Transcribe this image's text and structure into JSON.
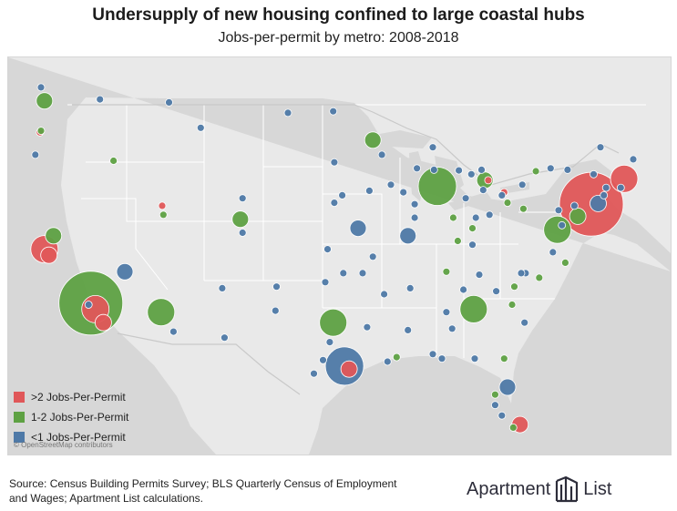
{
  "header": {
    "title": "Undersupply of new housing confined to large coastal hubs",
    "subtitle": "Jobs-per-permit by metro: 2008-2018"
  },
  "colors": {
    "red": "#e05759",
    "green": "#5ea143",
    "blue": "#4e79a7",
    "land": "#e9e9e9",
    "water": "#d7d7d7",
    "border": "#ffffff"
  },
  "legend": {
    "items": [
      {
        "label": ">2 Jobs-Per-Permit",
        "category": "red"
      },
      {
        "label": "1-2 Jobs-Per-Permit",
        "category": "green"
      },
      {
        "label": "<1 Jobs-Per-Permit",
        "category": "blue"
      }
    ]
  },
  "map": {
    "attribution": "© OpenStreetMap contributors",
    "metros": [
      {
        "lat": 40.7,
        "lon": -74.0,
        "category": "red",
        "size": 5
      },
      {
        "lat": 42.4,
        "lon": -71.1,
        "category": "red",
        "size": 3
      },
      {
        "lat": 37.7,
        "lon": -122.3,
        "category": "red",
        "size": 3
      },
      {
        "lat": 37.3,
        "lon": -121.9,
        "category": "red",
        "size": 2
      },
      {
        "lat": 33.7,
        "lon": -117.8,
        "category": "red",
        "size": 3
      },
      {
        "lat": 32.8,
        "lon": -117.1,
        "category": "red",
        "size": 2
      },
      {
        "lat": 29.7,
        "lon": -95.4,
        "category": "red",
        "size": 2
      },
      {
        "lat": 26.0,
        "lon": -80.3,
        "category": "red",
        "size": 2
      },
      {
        "lat": 40.6,
        "lon": -111.9,
        "category": "red",
        "size": 1
      },
      {
        "lat": 42.3,
        "lon": -83.1,
        "category": "red",
        "size": 1
      },
      {
        "lat": 41.5,
        "lon": -81.7,
        "category": "red",
        "size": 1
      },
      {
        "lat": 45.5,
        "lon": -122.7,
        "category": "red",
        "size": 1
      },
      {
        "lat": 34.1,
        "lon": -118.2,
        "category": "green",
        "size": 5
      },
      {
        "lat": 41.9,
        "lon": -87.6,
        "category": "green",
        "size": 4
      },
      {
        "lat": 39.0,
        "lon": -77.0,
        "category": "green",
        "size": 3
      },
      {
        "lat": 32.8,
        "lon": -96.8,
        "category": "green",
        "size": 3
      },
      {
        "lat": 33.7,
        "lon": -84.4,
        "category": "green",
        "size": 3
      },
      {
        "lat": 47.6,
        "lon": -122.3,
        "category": "green",
        "size": 2
      },
      {
        "lat": 44.98,
        "lon": -93.3,
        "category": "green",
        "size": 2
      },
      {
        "lat": 39.7,
        "lon": -105.0,
        "category": "green",
        "size": 2
      },
      {
        "lat": 33.5,
        "lon": -112.0,
        "category": "green",
        "size": 3
      },
      {
        "lat": 42.3,
        "lon": -83.4,
        "category": "green",
        "size": 2
      },
      {
        "lat": 38.6,
        "lon": -121.5,
        "category": "green",
        "size": 2
      },
      {
        "lat": 39.9,
        "lon": -75.2,
        "category": "green",
        "size": 2
      },
      {
        "lat": 39.1,
        "lon": -84.5,
        "category": "green",
        "size": 1
      },
      {
        "lat": 39.8,
        "lon": -86.2,
        "category": "green",
        "size": 1
      },
      {
        "lat": 36.2,
        "lon": -86.8,
        "category": "green",
        "size": 1
      },
      {
        "lat": 35.2,
        "lon": -80.8,
        "category": "green",
        "size": 1
      },
      {
        "lat": 30.4,
        "lon": -81.7,
        "category": "green",
        "size": 1
      },
      {
        "lat": 28.0,
        "lon": -82.5,
        "category": "green",
        "size": 1
      },
      {
        "lat": 30.5,
        "lon": -91.2,
        "category": "green",
        "size": 1
      },
      {
        "lat": 45.6,
        "lon": -122.6,
        "category": "green",
        "size": 1
      },
      {
        "lat": 42.9,
        "lon": -78.9,
        "category": "green",
        "size": 1
      },
      {
        "lat": 36.8,
        "lon": -76.3,
        "category": "green",
        "size": 1
      },
      {
        "lat": 38.25,
        "lon": -85.8,
        "category": "green",
        "size": 1
      },
      {
        "lat": 40.4,
        "lon": -80.0,
        "category": "green",
        "size": 1
      },
      {
        "lat": 40.8,
        "lon": -81.4,
        "category": "green",
        "size": 1
      },
      {
        "lat": 43.6,
        "lon": -116.2,
        "category": "green",
        "size": 1
      },
      {
        "lat": 40.0,
        "lon": -111.8,
        "category": "green",
        "size": 1
      },
      {
        "lat": 35.8,
        "lon": -78.6,
        "category": "green",
        "size": 1
      },
      {
        "lat": 34.0,
        "lon": -81.0,
        "category": "green",
        "size": 1
      },
      {
        "lat": 25.8,
        "lon": -80.9,
        "category": "green",
        "size": 1
      },
      {
        "lat": 34.0,
        "lon": -118.4,
        "category": "blue",
        "size": 1
      },
      {
        "lat": 29.9,
        "lon": -95.8,
        "category": "blue",
        "size": 4
      },
      {
        "lat": 40.75,
        "lon": -73.4,
        "category": "blue",
        "size": 2
      },
      {
        "lat": 28.5,
        "lon": -81.4,
        "category": "blue",
        "size": 2
      },
      {
        "lat": 30.3,
        "lon": -97.7,
        "category": "blue",
        "size": 1
      },
      {
        "lat": 29.4,
        "lon": -98.5,
        "category": "blue",
        "size": 1
      },
      {
        "lat": 35.5,
        "lon": -97.5,
        "category": "blue",
        "size": 1
      },
      {
        "lat": 36.2,
        "lon": -115.2,
        "category": "blue",
        "size": 2
      },
      {
        "lat": 39.1,
        "lon": -94.6,
        "category": "blue",
        "size": 2
      },
      {
        "lat": 38.6,
        "lon": -90.2,
        "category": "blue",
        "size": 2
      },
      {
        "lat": 41.3,
        "lon": -81.9,
        "category": "blue",
        "size": 1
      },
      {
        "lat": 43.0,
        "lon": -87.9,
        "category": "blue",
        "size": 1
      },
      {
        "lat": 41.6,
        "lon": -93.6,
        "category": "blue",
        "size": 1
      },
      {
        "lat": 41.3,
        "lon": -96.0,
        "category": "blue",
        "size": 1
      },
      {
        "lat": 37.7,
        "lon": -97.3,
        "category": "blue",
        "size": 1
      },
      {
        "lat": 35.1,
        "lon": -106.6,
        "category": "blue",
        "size": 1
      },
      {
        "lat": 32.2,
        "lon": -110.9,
        "category": "blue",
        "size": 1
      },
      {
        "lat": 31.8,
        "lon": -106.4,
        "category": "blue",
        "size": 1
      },
      {
        "lat": 36.1,
        "lon": -95.9,
        "category": "blue",
        "size": 1
      },
      {
        "lat": 35.1,
        "lon": -90.0,
        "category": "blue",
        "size": 1
      },
      {
        "lat": 33.5,
        "lon": -86.8,
        "category": "blue",
        "size": 1
      },
      {
        "lat": 32.4,
        "lon": -86.3,
        "category": "blue",
        "size": 1
      },
      {
        "lat": 30.7,
        "lon": -88.0,
        "category": "blue",
        "size": 1
      },
      {
        "lat": 32.3,
        "lon": -90.2,
        "category": "blue",
        "size": 1
      },
      {
        "lat": 32.5,
        "lon": -93.8,
        "category": "blue",
        "size": 1
      },
      {
        "lat": 30.2,
        "lon": -92.0,
        "category": "blue",
        "size": 1
      },
      {
        "lat": 42.7,
        "lon": -73.8,
        "category": "blue",
        "size": 1
      },
      {
        "lat": 43.1,
        "lon": -77.6,
        "category": "blue",
        "size": 1
      },
      {
        "lat": 43.0,
        "lon": -76.1,
        "category": "blue",
        "size": 1
      },
      {
        "lat": 41.8,
        "lon": -71.4,
        "category": "blue",
        "size": 1
      },
      {
        "lat": 41.8,
        "lon": -72.7,
        "category": "blue",
        "size": 1
      },
      {
        "lat": 41.3,
        "lon": -72.9,
        "category": "blue",
        "size": 1
      },
      {
        "lat": 39.3,
        "lon": -76.6,
        "category": "blue",
        "size": 1
      },
      {
        "lat": 37.5,
        "lon": -77.4,
        "category": "blue",
        "size": 1
      },
      {
        "lat": 40.0,
        "lon": -83.0,
        "category": "blue",
        "size": 1
      },
      {
        "lat": 39.8,
        "lon": -84.2,
        "category": "blue",
        "size": 1
      },
      {
        "lat": 42.96,
        "lon": -85.7,
        "category": "blue",
        "size": 1
      },
      {
        "lat": 42.7,
        "lon": -84.6,
        "category": "blue",
        "size": 1
      },
      {
        "lat": 43.0,
        "lon": -83.7,
        "category": "blue",
        "size": 1
      },
      {
        "lat": 41.1,
        "lon": -85.1,
        "category": "blue",
        "size": 1
      },
      {
        "lat": 41.65,
        "lon": -83.55,
        "category": "blue",
        "size": 1
      },
      {
        "lat": 38.0,
        "lon": -84.5,
        "category": "blue",
        "size": 1
      },
      {
        "lat": 36.0,
        "lon": -83.9,
        "category": "blue",
        "size": 1
      },
      {
        "lat": 35.0,
        "lon": -85.3,
        "category": "blue",
        "size": 1
      },
      {
        "lat": 36.1,
        "lon": -79.8,
        "category": "blue",
        "size": 1
      },
      {
        "lat": 36.1,
        "lon": -80.2,
        "category": "blue",
        "size": 1
      },
      {
        "lat": 34.9,
        "lon": -82.4,
        "category": "blue",
        "size": 1
      },
      {
        "lat": 32.8,
        "lon": -79.9,
        "category": "blue",
        "size": 1
      },
      {
        "lat": 30.4,
        "lon": -84.3,
        "category": "blue",
        "size": 1
      },
      {
        "lat": 30.4,
        "lon": -87.2,
        "category": "blue",
        "size": 1
      },
      {
        "lat": 26.6,
        "lon": -81.9,
        "category": "blue",
        "size": 1
      },
      {
        "lat": 27.3,
        "lon": -82.5,
        "category": "blue",
        "size": 1
      },
      {
        "lat": 47.7,
        "lon": -117.4,
        "category": "blue",
        "size": 1
      },
      {
        "lat": 44.0,
        "lon": -123.1,
        "category": "blue",
        "size": 1
      },
      {
        "lat": 46.9,
        "lon": -96.8,
        "category": "blue",
        "size": 1
      },
      {
        "lat": 43.5,
        "lon": -96.7,
        "category": "blue",
        "size": 1
      },
      {
        "lat": 40.8,
        "lon": -96.7,
        "category": "blue",
        "size": 1
      },
      {
        "lat": 44.5,
        "lon": -88.0,
        "category": "blue",
        "size": 1
      },
      {
        "lat": 43.1,
        "lon": -89.4,
        "category": "blue",
        "size": 1
      },
      {
        "lat": 44.0,
        "lon": -92.5,
        "category": "blue",
        "size": 1
      },
      {
        "lat": 41.5,
        "lon": -90.6,
        "category": "blue",
        "size": 1
      },
      {
        "lat": 42.0,
        "lon": -91.7,
        "category": "blue",
        "size": 1
      },
      {
        "lat": 40.7,
        "lon": -89.6,
        "category": "blue",
        "size": 1
      },
      {
        "lat": 39.8,
        "lon": -89.6,
        "category": "blue",
        "size": 1
      },
      {
        "lat": 37.2,
        "lon": -93.3,
        "category": "blue",
        "size": 1
      },
      {
        "lat": 36.1,
        "lon": -94.2,
        "category": "blue",
        "size": 1
      },
      {
        "lat": 34.7,
        "lon": -92.3,
        "category": "blue",
        "size": 1
      },
      {
        "lat": 31.5,
        "lon": -97.1,
        "category": "blue",
        "size": 1
      },
      {
        "lat": 33.6,
        "lon": -101.9,
        "category": "blue",
        "size": 1
      },
      {
        "lat": 35.2,
        "lon": -101.8,
        "category": "blue",
        "size": 1
      },
      {
        "lat": 46.8,
        "lon": -100.8,
        "category": "blue",
        "size": 1
      },
      {
        "lat": 45.8,
        "lon": -108.5,
        "category": "blue",
        "size": 1
      },
      {
        "lat": 41.1,
        "lon": -104.8,
        "category": "blue",
        "size": 1
      },
      {
        "lat": 38.8,
        "lon": -104.8,
        "category": "blue",
        "size": 1
      },
      {
        "lat": 42.0,
        "lon": -80.1,
        "category": "blue",
        "size": 1
      },
      {
        "lat": 40.3,
        "lon": -76.9,
        "category": "blue",
        "size": 1
      },
      {
        "lat": 40.6,
        "lon": -75.5,
        "category": "blue",
        "size": 1
      },
      {
        "lat": 44.5,
        "lon": -73.2,
        "category": "blue",
        "size": 1
      },
      {
        "lat": 43.7,
        "lon": -70.3,
        "category": "blue",
        "size": 1
      },
      {
        "lat": 48.5,
        "lon": -122.6,
        "category": "blue",
        "size": 1
      },
      {
        "lat": 47.5,
        "lon": -111.3,
        "category": "blue",
        "size": 1
      }
    ]
  },
  "footer": {
    "source_line1": "Source: Census Building Permits Survey; BLS Quarterly Census of Employment",
    "source_line2": "and Wages; Apartment List calculations.",
    "logo_word1": "Apartment",
    "logo_word2": "List"
  }
}
